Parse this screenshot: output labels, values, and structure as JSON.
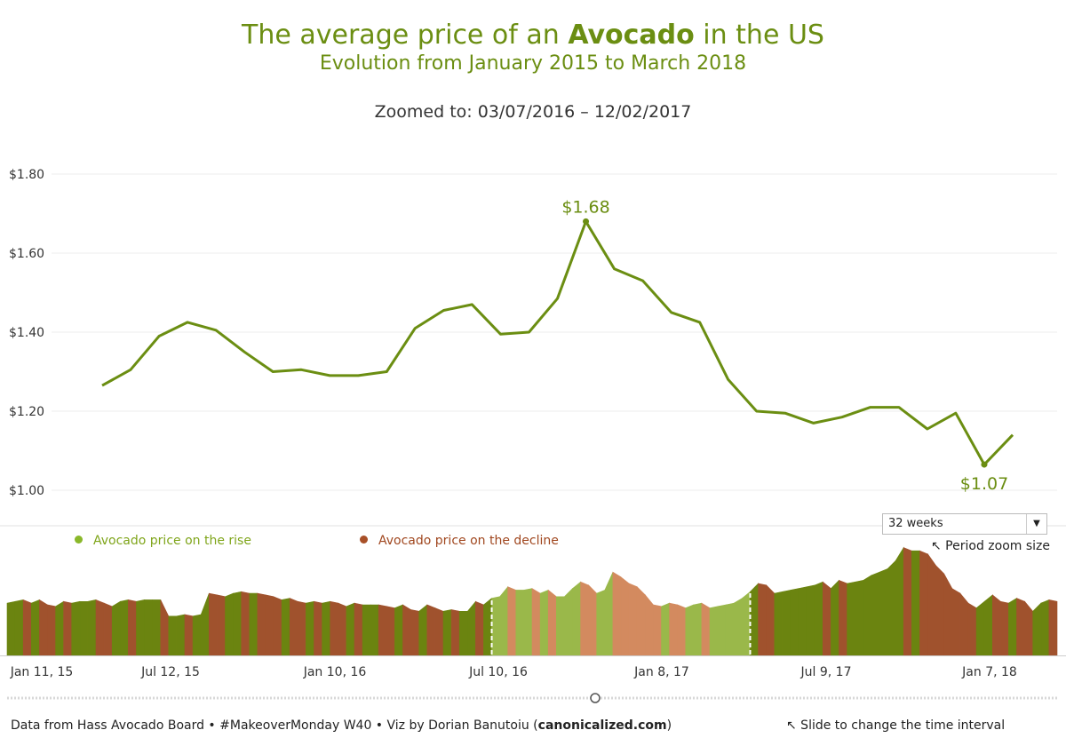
{
  "header": {
    "title_prefix": "The average price of an ",
    "title_bold": "Avocado",
    "title_suffix": " in the US",
    "subtitle": "Evolution from January 2015 to March 2018",
    "zoomed": "Zoomed to: 03/07/2016 – 12/02/2017"
  },
  "chart_data": [
    {
      "type": "line",
      "y_ticks": [
        "$1.80",
        "$1.60",
        "$1.40",
        "$1.20",
        "$1.00"
      ],
      "ylim": [
        1.0,
        1.8
      ],
      "grid": true,
      "series": [
        {
          "values": [
            1.265,
            1.305,
            1.39,
            1.425,
            1.405,
            1.35,
            1.3,
            1.305,
            1.29,
            1.29,
            1.3,
            1.41,
            1.455,
            1.47,
            1.395,
            1.4,
            1.485,
            1.68,
            1.56,
            1.53,
            1.45,
            1.425,
            1.28,
            1.2,
            1.195,
            1.17,
            1.185,
            1.21,
            1.21,
            1.155,
            1.195,
            1.065,
            1.14
          ]
        }
      ],
      "annotations": [
        {
          "label": "$1.68",
          "index": 17,
          "value": 1.68
        },
        {
          "label": "$1.07",
          "index": 31,
          "value": 1.065
        }
      ],
      "color": "#6b8e12"
    },
    {
      "type": "area",
      "x_ticks": [
        "Jan 11, 15",
        "Jul 12, 15",
        "Jan 10, 16",
        "Jul 10, 16",
        "Jan 8, 17",
        "Jul 9, 17",
        "Jan 7, 18"
      ],
      "legend": [
        "Avocado price on the rise",
        "Avocado price on the decline"
      ],
      "legend_placement": "top-left",
      "selected_range_weeks": [
        60,
        92
      ],
      "colors": {
        "rise": "#6b8410",
        "decline": "#a0522d",
        "rise_selected": "#9ab84a",
        "decline_selected": "#d38a5f"
      },
      "values": [
        1.32,
        1.33,
        1.34,
        1.32,
        1.34,
        1.31,
        1.3,
        1.33,
        1.32,
        1.33,
        1.33,
        1.34,
        1.32,
        1.3,
        1.33,
        1.34,
        1.33,
        1.34,
        1.34,
        1.34,
        1.24,
        1.24,
        1.25,
        1.24,
        1.25,
        1.38,
        1.37,
        1.36,
        1.38,
        1.39,
        1.38,
        1.38,
        1.37,
        1.36,
        1.34,
        1.35,
        1.33,
        1.32,
        1.33,
        1.32,
        1.33,
        1.32,
        1.3,
        1.32,
        1.31,
        1.31,
        1.31,
        1.3,
        1.29,
        1.31,
        1.28,
        1.27,
        1.31,
        1.29,
        1.27,
        1.28,
        1.27,
        1.27,
        1.33,
        1.31,
        1.35,
        1.36,
        1.42,
        1.4,
        1.4,
        1.41,
        1.38,
        1.4,
        1.36,
        1.36,
        1.41,
        1.45,
        1.43,
        1.38,
        1.4,
        1.51,
        1.48,
        1.44,
        1.42,
        1.37,
        1.31,
        1.3,
        1.32,
        1.31,
        1.29,
        1.31,
        1.32,
        1.29,
        1.3,
        1.31,
        1.32,
        1.35,
        1.39,
        1.44,
        1.43,
        1.38,
        1.39,
        1.4,
        1.41,
        1.42,
        1.43,
        1.45,
        1.41,
        1.46,
        1.44,
        1.45,
        1.46,
        1.49,
        1.51,
        1.53,
        1.58,
        1.66,
        1.64,
        1.64,
        1.62,
        1.55,
        1.5,
        1.41,
        1.38,
        1.32,
        1.29,
        1.33,
        1.37,
        1.33,
        1.32,
        1.35,
        1.33,
        1.27,
        1.32,
        1.34,
        1.33
      ]
    }
  ],
  "controls": {
    "period_select": "32 weeks",
    "period_hint": "↖ Period zoom size",
    "slide_hint": "↖ Slide to change the time interval"
  },
  "footer": {
    "text_prefix": "Data from Hass Avocado Board • #MakeoverMonday W40 • Viz by Dorian Banutoiu (",
    "text_bold": "canonicalized.com",
    "text_suffix": ")"
  }
}
